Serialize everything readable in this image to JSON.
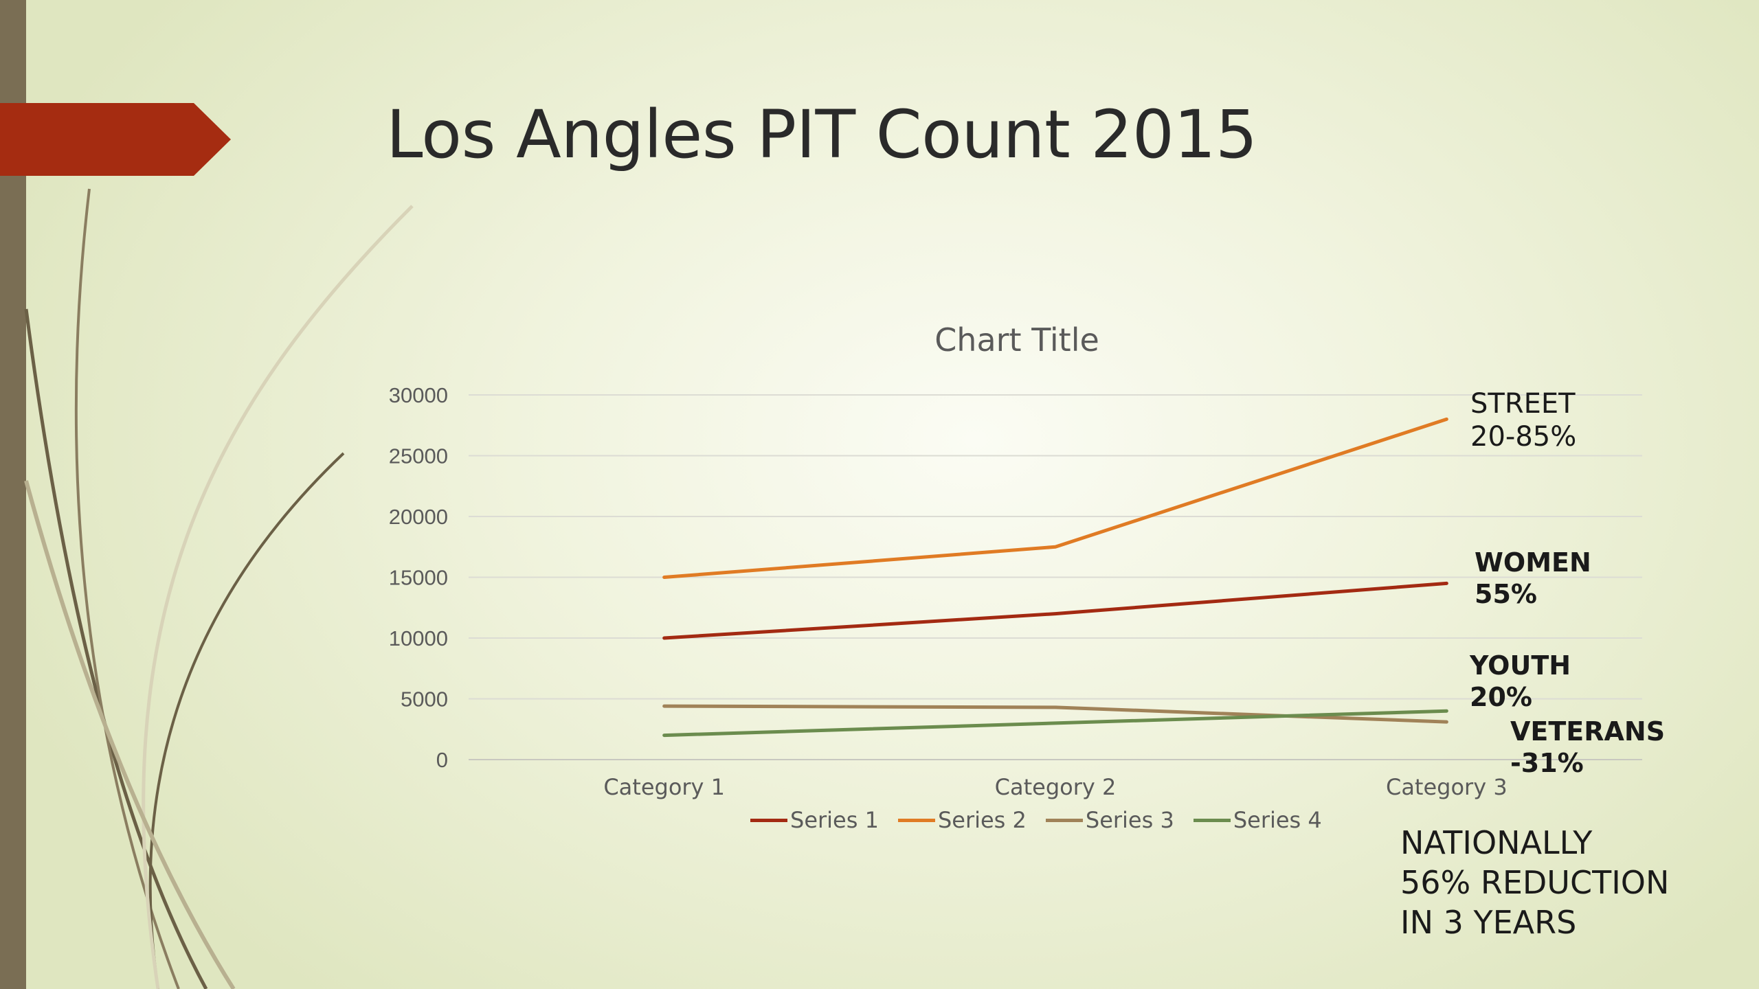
{
  "slide": {
    "title": "Los Angles PIT Count 2015",
    "accent_color": "#a52c11",
    "sidebar_color": "#7a6e54"
  },
  "chart_data": {
    "type": "line",
    "title": "Chart Title",
    "categories": [
      "Category 1",
      "Category 2",
      "Category 3"
    ],
    "ylim": [
      0,
      30000
    ],
    "yticks": [
      "0",
      "5000",
      "10000",
      "15000",
      "20000",
      "25000",
      "30000"
    ],
    "grid": true,
    "legend": "bottom",
    "series": [
      {
        "name": "Series 1",
        "values": [
          10000,
          12000,
          14500
        ],
        "color": "#a32a12"
      },
      {
        "name": "Series 2",
        "values": [
          15000,
          17500,
          28000
        ],
        "color": "#e07b24"
      },
      {
        "name": "Series 3",
        "values": [
          4400,
          4300,
          3100
        ],
        "color": "#a08258"
      },
      {
        "name": "Series 4",
        "values": [
          2000,
          3000,
          4000
        ],
        "color": "#6b8c4e"
      }
    ]
  },
  "annotations": {
    "street": [
      "STREET",
      "20-85%"
    ],
    "women": [
      "WOMEN",
      "55%"
    ],
    "youth": [
      "YOUTH",
      "20%"
    ],
    "veterans": [
      "VETERANS",
      "-31%"
    ],
    "national": [
      "NATIONALLY",
      "56% REDUCTION",
      "IN 3 YEARS"
    ]
  }
}
